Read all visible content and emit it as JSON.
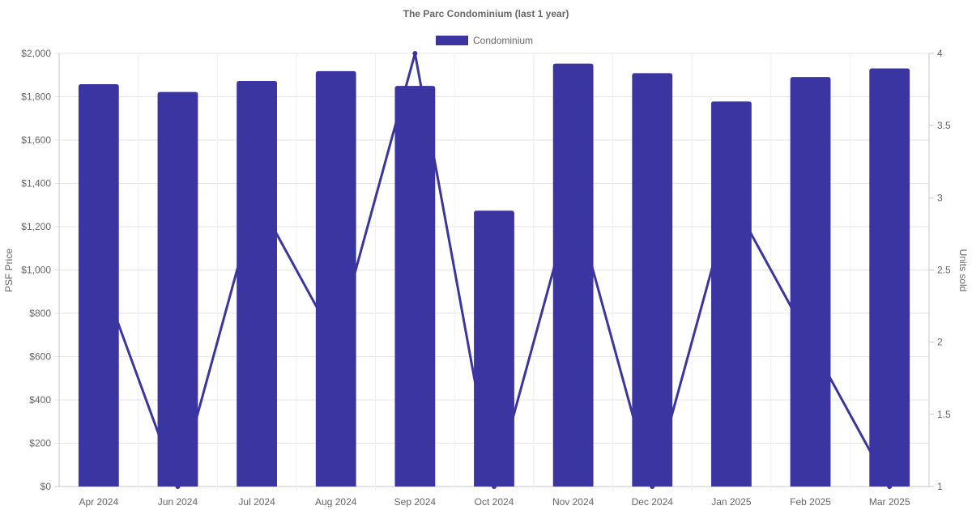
{
  "chart_data": {
    "type": "bar",
    "title": "The Parc Condominium (last 1 year)",
    "categories": [
      "Apr 2024",
      "Jun 2024",
      "Jul 2024",
      "Aug 2024",
      "Sep 2024",
      "Oct 2024",
      "Nov 2024",
      "Dec 2024",
      "Jan 2025",
      "Feb 2025",
      "Mar 2025"
    ],
    "series": [
      {
        "name": "Condominium",
        "type": "bar",
        "axis": "left",
        "color": "#3a35a0",
        "values": [
          1858,
          1822,
          1873,
          1918,
          1850,
          1274,
          1953,
          1909,
          1778,
          1891,
          1931
        ]
      },
      {
        "type": "line",
        "axis": "right",
        "color": "#3a35a0",
        "values": [
          2.5,
          1,
          3,
          2,
          4,
          1,
          3,
          1,
          3,
          2,
          1
        ]
      }
    ],
    "ylabel": "PSF Price",
    "y2label": "Units sold",
    "ylim": [
      0,
      2000
    ],
    "y2lim": [
      1,
      4
    ],
    "yticks": [
      "$0",
      "$200",
      "$400",
      "$600",
      "$800",
      "$1,000",
      "$1,200",
      "$1,400",
      "$1,600",
      "$1,800",
      "$2,000"
    ],
    "y2ticks": [
      "1",
      "1.5",
      "2",
      "2.5",
      "3",
      "3.5",
      "4"
    ],
    "grid": true,
    "legend": "top-center"
  }
}
